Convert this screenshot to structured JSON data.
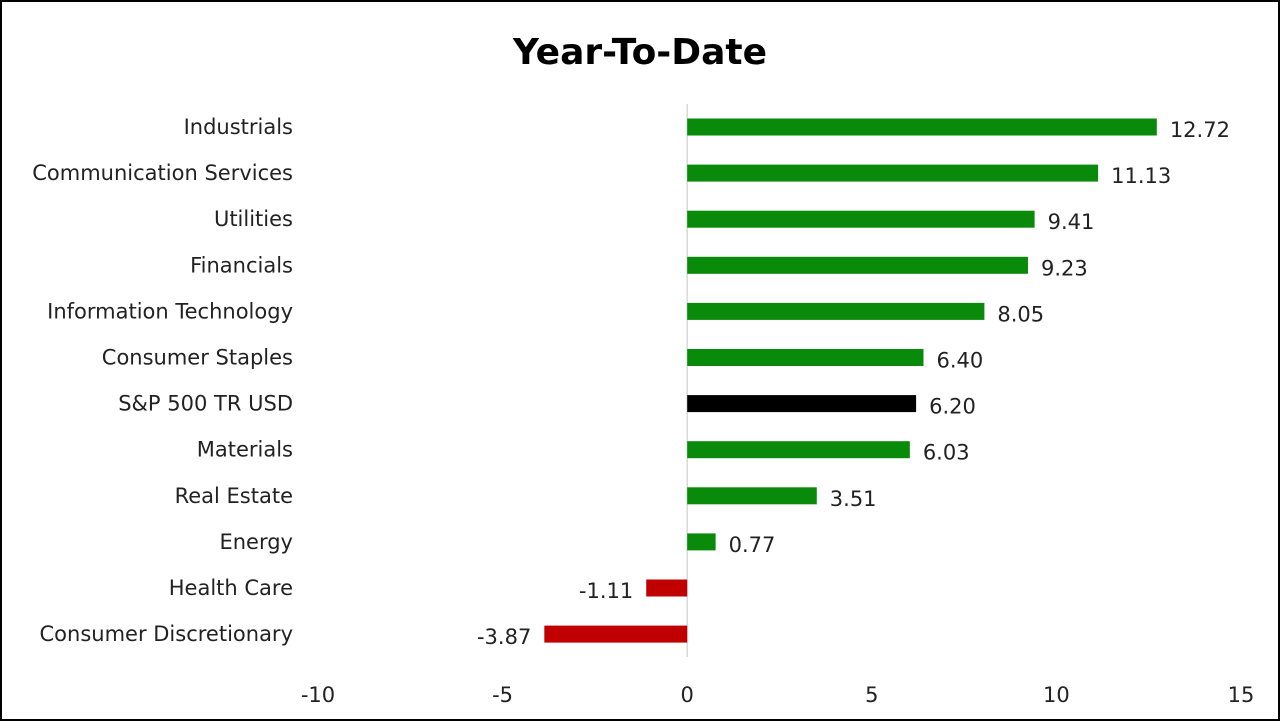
{
  "chart_data": {
    "type": "bar",
    "orientation": "horizontal",
    "title": "Year-To-Date",
    "xlabel": "",
    "ylabel": "",
    "xlim": [
      -10,
      15
    ],
    "x_ticks": [
      -10,
      -5,
      0,
      5,
      10,
      15
    ],
    "grid": false,
    "categories": [
      "Industrials",
      "Communication Services",
      "Utilities",
      "Financials",
      "Information Technology",
      "Consumer Staples",
      "S&P 500 TR USD",
      "Materials",
      "Real Estate",
      "Energy",
      "Health Care",
      "Consumer Discretionary"
    ],
    "values": [
      12.72,
      11.13,
      9.41,
      9.23,
      8.05,
      6.4,
      6.2,
      6.03,
      3.51,
      0.77,
      -1.11,
      -3.87
    ],
    "value_labels": [
      "12.72",
      "11.13",
      "9.41",
      "9.23",
      "8.05",
      "6.40",
      "6.20",
      "6.03",
      "3.51",
      "0.77",
      "-1.11",
      "-3.87"
    ],
    "bar_colors": [
      "#0a8a0a",
      "#0a8a0a",
      "#0a8a0a",
      "#0a8a0a",
      "#0a8a0a",
      "#0a8a0a",
      "#000000",
      "#0a8a0a",
      "#0a8a0a",
      "#0a8a0a",
      "#c00000",
      "#c00000"
    ],
    "colors": {
      "positive": "#0a8a0a",
      "negative": "#c00000",
      "benchmark": "#000000",
      "axis": "#d9d9d9"
    }
  }
}
